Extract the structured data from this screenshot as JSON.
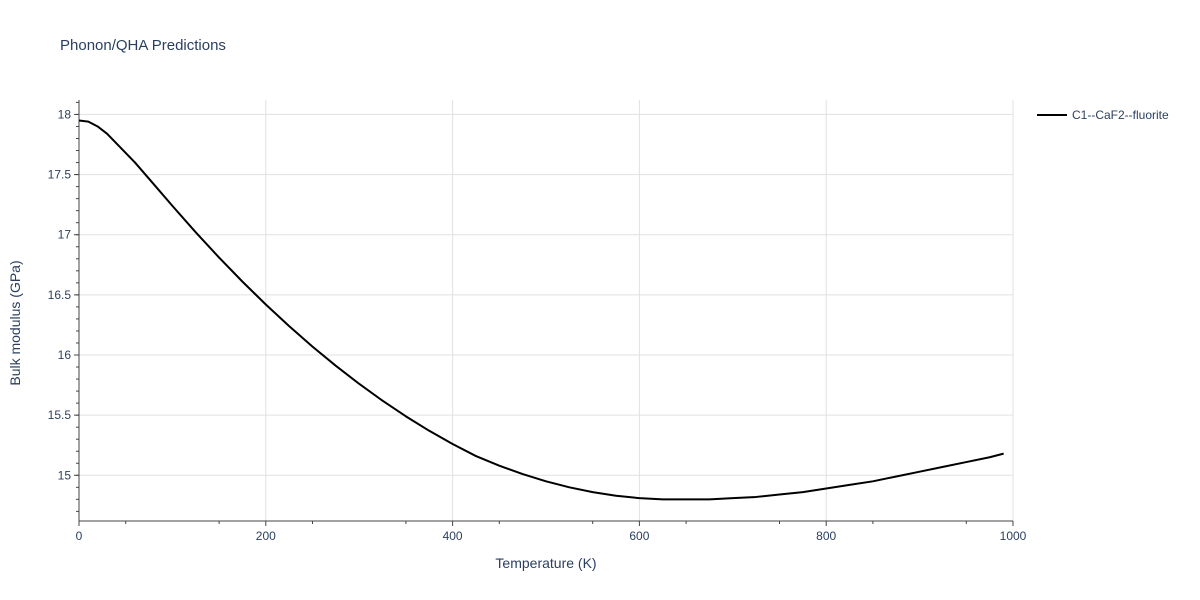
{
  "chart_data": {
    "type": "line",
    "title": "Phonon/QHA Predictions",
    "xlabel": "Temperature (K)",
    "ylabel": "Bulk modulus (GPa)",
    "xlim": [
      0,
      1000
    ],
    "ylim": [
      14.62,
      18.12
    ],
    "x_ticks": [
      0,
      200,
      400,
      600,
      800,
      1000
    ],
    "x_tick_labels": [
      "0",
      "200",
      "400",
      "600",
      "800",
      "1000"
    ],
    "y_ticks": [
      15,
      15.5,
      16,
      16.5,
      17,
      17.5,
      18
    ],
    "y_tick_labels": [
      "15",
      "15.5",
      "16",
      "16.5",
      "17",
      "17.5",
      "18"
    ],
    "grid": true,
    "legend_position": "top-right",
    "series": [
      {
        "name": "C1--CaF2--fluorite",
        "color": "#000000",
        "x": [
          0,
          10,
          20,
          30,
          40,
          50,
          60,
          80,
          100,
          125,
          150,
          175,
          200,
          225,
          250,
          275,
          300,
          325,
          350,
          375,
          400,
          425,
          450,
          475,
          500,
          525,
          550,
          575,
          600,
          625,
          650,
          675,
          700,
          725,
          750,
          775,
          800,
          825,
          850,
          875,
          900,
          925,
          950,
          975,
          990
        ],
        "y": [
          17.95,
          17.94,
          17.9,
          17.84,
          17.76,
          17.68,
          17.6,
          17.42,
          17.24,
          17.02,
          16.81,
          16.61,
          16.42,
          16.24,
          16.07,
          15.91,
          15.76,
          15.62,
          15.49,
          15.37,
          15.26,
          15.16,
          15.08,
          15.01,
          14.95,
          14.9,
          14.86,
          14.83,
          14.81,
          14.8,
          14.8,
          14.8,
          14.81,
          14.82,
          14.84,
          14.86,
          14.89,
          14.92,
          14.95,
          14.99,
          15.03,
          15.07,
          15.11,
          15.15,
          15.18
        ]
      }
    ]
  }
}
